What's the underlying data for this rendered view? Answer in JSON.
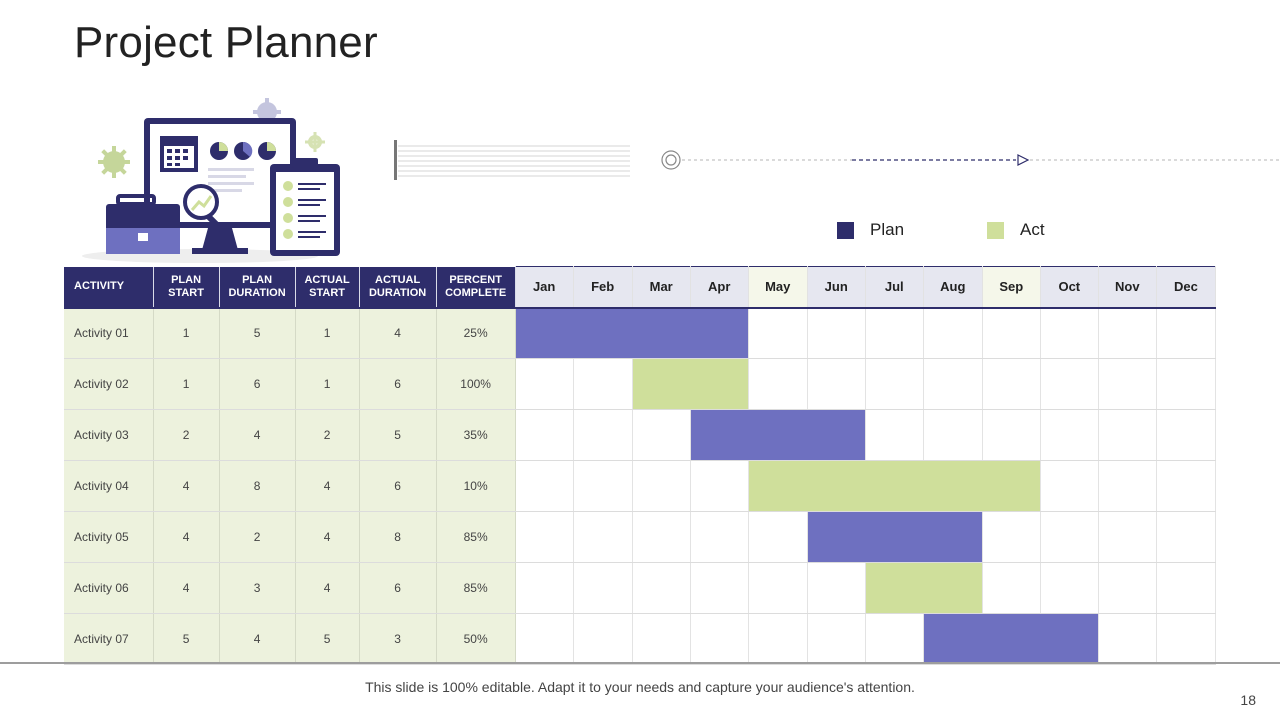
{
  "slide": {
    "title": "Project Planner",
    "footer_text": "This slide is 100% editable. Adapt it to your needs and capture your audience's attention.",
    "page_number": "18"
  },
  "legend": {
    "plan_label": "Plan",
    "act_label": "Act",
    "plan_color": "#6e70c0",
    "act_color": "#cfdf9b"
  },
  "colors": {
    "header_dark": "#2e2d6b",
    "info_bg": "#edf2dd",
    "month_alt_lavender": "#e6e7f0",
    "month_alt_cream": "#f5f7ea"
  },
  "table": {
    "columns": [
      {
        "line1": "ACTIVITY",
        "line2": ""
      },
      {
        "line1": "PLAN",
        "line2": "START"
      },
      {
        "line1": "PLAN",
        "line2": "DURATION"
      },
      {
        "line1": "ACTUAL",
        "line2": "START"
      },
      {
        "line1": "ACTUAL",
        "line2": "DURATION"
      },
      {
        "line1": "PERCENT",
        "line2": "COMPLETE"
      }
    ],
    "months": [
      "Jan",
      "Feb",
      "Mar",
      "Apr",
      "May",
      "Jun",
      "Jul",
      "Aug",
      "Sep",
      "Oct",
      "Nov",
      "Dec"
    ],
    "rows": [
      {
        "activity": "Activity 01",
        "plan_start": "1",
        "plan_duration": "5",
        "actual_start": "1",
        "actual_duration": "4",
        "percent_complete": "25%",
        "bar": {
          "type": "plan",
          "start_month": 1,
          "end_month": 4
        }
      },
      {
        "activity": "Activity 02",
        "plan_start": "1",
        "plan_duration": "6",
        "actual_start": "1",
        "actual_duration": "6",
        "percent_complete": "100%",
        "bar": {
          "type": "act",
          "start_month": 3,
          "end_month": 4
        }
      },
      {
        "activity": "Activity 03",
        "plan_start": "2",
        "plan_duration": "4",
        "actual_start": "2",
        "actual_duration": "5",
        "percent_complete": "35%",
        "bar": {
          "type": "plan",
          "start_month": 4,
          "end_month": 6
        }
      },
      {
        "activity": "Activity 04",
        "plan_start": "4",
        "plan_duration": "8",
        "actual_start": "4",
        "actual_duration": "6",
        "percent_complete": "10%",
        "bar": {
          "type": "act",
          "start_month": 5,
          "end_month": 9
        }
      },
      {
        "activity": "Activity 05",
        "plan_start": "4",
        "plan_duration": "2",
        "actual_start": "4",
        "actual_duration": "8",
        "percent_complete": "85%",
        "bar": {
          "type": "plan",
          "start_month": 6,
          "end_month": 8
        }
      },
      {
        "activity": "Activity 06",
        "plan_start": "4",
        "plan_duration": "3",
        "actual_start": "4",
        "actual_duration": "6",
        "percent_complete": "85%",
        "bar": {
          "type": "act",
          "start_month": 7,
          "end_month": 8
        }
      },
      {
        "activity": "Activity 07",
        "plan_start": "5",
        "plan_duration": "4",
        "actual_start": "5",
        "actual_duration": "3",
        "percent_complete": "50%",
        "bar": {
          "type": "plan",
          "start_month": 8,
          "end_month": 10
        }
      }
    ]
  }
}
